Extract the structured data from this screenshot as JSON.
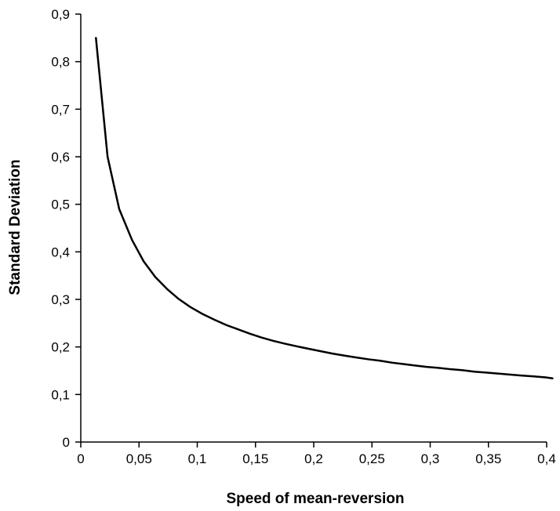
{
  "chart_data": {
    "type": "line",
    "title": "",
    "xlabel": "Speed of mean-reversion",
    "ylabel": "Standard Deviation",
    "xlim": [
      0,
      0.4
    ],
    "ylim": [
      0,
      0.9
    ],
    "grid": false,
    "legend": "none",
    "x_ticks": [
      0,
      0.05,
      0.1,
      0.15,
      0.2,
      0.25,
      0.3,
      0.35,
      0.4
    ],
    "x_tick_labels": [
      "0",
      "0,05",
      "0,1",
      "0,15",
      "0,2",
      "0,25",
      "0,3",
      "0,35",
      "0,4"
    ],
    "y_ticks": [
      0,
      0.1,
      0.2,
      0.3,
      0.4,
      0.5,
      0.6,
      0.7,
      0.8,
      0.9
    ],
    "y_tick_labels": [
      "0",
      "0,1",
      "0,2",
      "0,3",
      "0,4",
      "0,5",
      "0,6",
      "0,7",
      "0,8",
      "0,9"
    ],
    "colors": {
      "line": "#000000",
      "axis": "#000000"
    },
    "series": [
      {
        "x": [
          0.013,
          0.023,
          0.033,
          0.044,
          0.054,
          0.064,
          0.074,
          0.084,
          0.094,
          0.104,
          0.115,
          0.125,
          0.135,
          0.145,
          0.155,
          0.165,
          0.175,
          0.186,
          0.196,
          0.206,
          0.216,
          0.226,
          0.236,
          0.247,
          0.257,
          0.267,
          0.277,
          0.287,
          0.297,
          0.307,
          0.318,
          0.328,
          0.338,
          0.348,
          0.358,
          0.368,
          0.378,
          0.389,
          0.399,
          0.405
        ],
        "values": [
          0.85,
          0.6,
          0.49,
          0.425,
          0.38,
          0.347,
          0.322,
          0.301,
          0.284,
          0.27,
          0.257,
          0.246,
          0.237,
          0.228,
          0.22,
          0.213,
          0.207,
          0.201,
          0.196,
          0.191,
          0.186,
          0.182,
          0.178,
          0.174,
          0.171,
          0.167,
          0.164,
          0.161,
          0.158,
          0.156,
          0.153,
          0.151,
          0.148,
          0.146,
          0.144,
          0.142,
          0.14,
          0.138,
          0.136,
          0.134
        ]
      }
    ]
  }
}
